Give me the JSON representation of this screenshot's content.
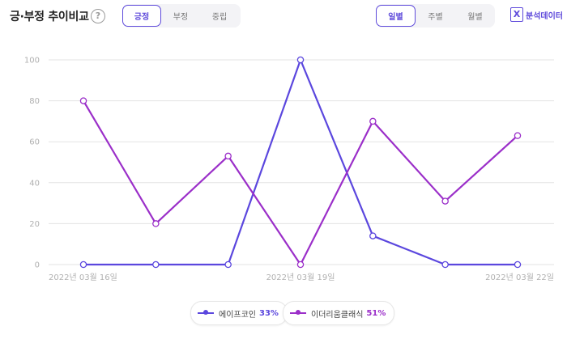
{
  "header": {
    "title": "긍·부정 추이비교",
    "help_icon": "?",
    "sentiment_tabs": [
      {
        "label": "긍정",
        "active": true
      },
      {
        "label": "부정",
        "active": false
      },
      {
        "label": "중립",
        "active": false
      }
    ],
    "period_tabs": [
      {
        "label": "일별",
        "active": true
      },
      {
        "label": "주별",
        "active": false
      },
      {
        "label": "월별",
        "active": false
      }
    ],
    "export_label": "분석데이터",
    "export_icon": "excel-icon"
  },
  "colors": {
    "accent": "#5f4bdb",
    "series_1": "#5b47de",
    "series_2": "#9b2fc9",
    "grid": "#e3e3e3",
    "axis_text": "#b0b0b0"
  },
  "chart_data": {
    "type": "line",
    "title": "",
    "xlabel": "",
    "ylabel": "",
    "ylim": [
      0,
      100
    ],
    "yticks": [
      0,
      20,
      40,
      60,
      80,
      100
    ],
    "x": [
      "2022-03-16",
      "2022-03-17",
      "2022-03-18",
      "2022-03-19",
      "2022-03-20",
      "2022-03-21",
      "2022-03-22"
    ],
    "xtick_labels": [
      {
        "index": 0,
        "label": "2022년 03월 16일"
      },
      {
        "index": 3,
        "label": "2022년 03월 19일"
      },
      {
        "index": 6,
        "label": "2022년 03월 22일"
      }
    ],
    "grid": true,
    "legend_position": "bottom-center",
    "series": [
      {
        "name": "에이프코인",
        "share": "33%",
        "values": [
          0,
          0,
          0,
          100,
          14,
          0,
          0
        ]
      },
      {
        "name": "이더리움클래식",
        "share": "51%",
        "values": [
          80,
          20,
          53,
          0,
          70,
          31,
          63
        ]
      }
    ]
  }
}
